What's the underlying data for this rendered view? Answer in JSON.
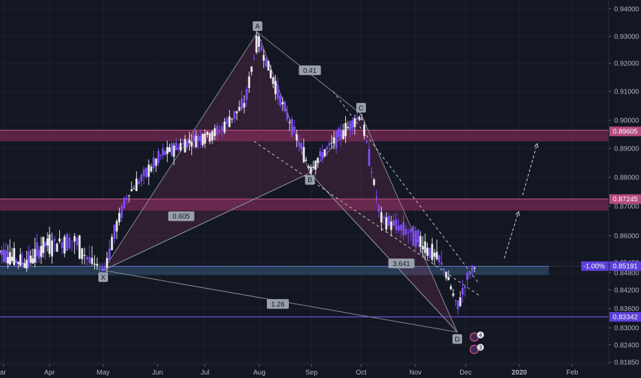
{
  "chart_data": {
    "type": "candlestick",
    "price_axis": {
      "ticks": [
        "0.94000",
        "0.93000",
        "0.92000",
        "0.91000",
        "0.90000",
        "0.89000",
        "0.88000",
        "0.87000",
        "0.86000",
        "0.85400",
        "0.84800",
        "0.84200",
        "0.83600",
        "0.83000",
        "0.82400",
        "0.81850"
      ],
      "tick_values": [
        0.94,
        0.93,
        0.92,
        0.91,
        0.9,
        0.89,
        0.88,
        0.87,
        0.86,
        0.854,
        0.848,
        0.842,
        0.836,
        0.83,
        0.824,
        0.8185
      ]
    },
    "time_axis": {
      "ticks": [
        "ar",
        "Apr",
        "May",
        "Jun",
        "Jul",
        "Aug",
        "Sep",
        "Oct",
        "Nov",
        "Dec",
        "2020",
        "Feb"
      ],
      "tick_days": [
        0,
        31,
        61,
        92,
        122,
        153,
        184,
        214,
        245,
        275,
        306,
        337
      ],
      "bold": [
        "2020"
      ]
    },
    "price_badges": [
      {
        "label": "0.89605",
        "value": 0.89605,
        "color": "#b54b7f"
      },
      {
        "label": "0.87245",
        "value": 0.87245,
        "color": "#b54b7f"
      },
      {
        "label": "0.85191",
        "value": 0.85191,
        "color": "#5b3fd6",
        "prefix": "-1.00%"
      },
      {
        "label": "0.83342",
        "value": 0.83342,
        "color": "#5b3fd6"
      }
    ],
    "zones": [
      {
        "name": "resistance-upper",
        "from": 0.8925,
        "to": 0.8965,
        "color": "#7a2a55"
      },
      {
        "name": "resistance-lower",
        "from": 0.8685,
        "to": 0.8725,
        "color": "#7a2a55"
      },
      {
        "name": "support",
        "from": 0.8472,
        "to": 0.8518,
        "color": "#2f4a66"
      }
    ],
    "lines": [
      {
        "name": "hline-83342",
        "value": 0.83342,
        "color": "#7b5cff"
      }
    ],
    "pattern_points": [
      {
        "label": "X",
        "day": 61,
        "price": 0.8495
      },
      {
        "label": "A",
        "day": 152,
        "price": 0.9315
      },
      {
        "label": "B",
        "day": 183,
        "price": 0.8815
      },
      {
        "label": "C",
        "day": 214,
        "price": 0.9022
      },
      {
        "label": "D",
        "day": 270,
        "price": 0.8285
      }
    ],
    "ratios": [
      {
        "label": "0.41",
        "day": 183,
        "price": 0.9175
      },
      {
        "label": "0.605",
        "day": 107,
        "price": 0.8666
      },
      {
        "label": "3.641",
        "day": 237,
        "price": 0.8535
      },
      {
        "label": "1.26",
        "day": 164,
        "price": 0.8375
      }
    ],
    "event_markers": [
      {
        "label": "4",
        "day": 280,
        "price": 0.8268
      },
      {
        "label": "3",
        "day": 280,
        "price": 0.8226
      }
    ]
  }
}
